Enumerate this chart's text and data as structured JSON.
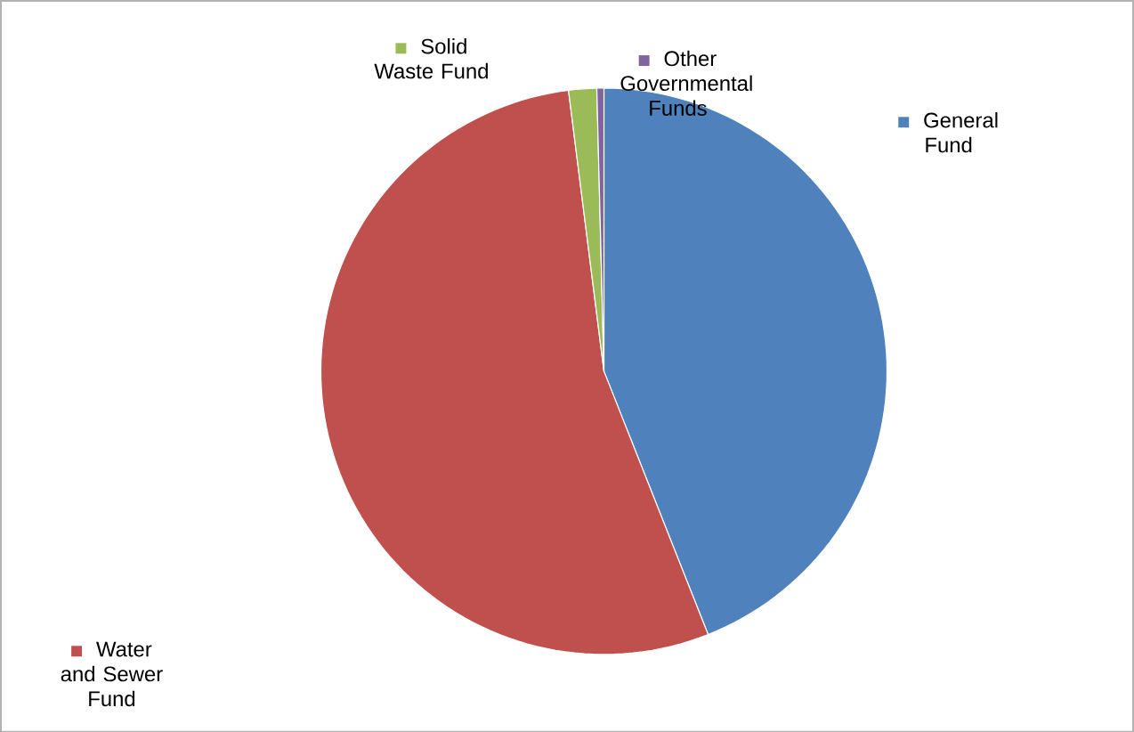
{
  "chart_data": {
    "type": "pie",
    "categories": [
      "General Fund",
      "Water and Sewer Fund",
      "Solid Waste Fund",
      "Other Governmental Funds"
    ],
    "values": [
      44,
      54,
      1.6,
      0.4
    ],
    "colors": [
      "#4f81bd",
      "#c0504d",
      "#9bbb59",
      "#8064a2"
    ],
    "legend": "bottom left"
  }
}
